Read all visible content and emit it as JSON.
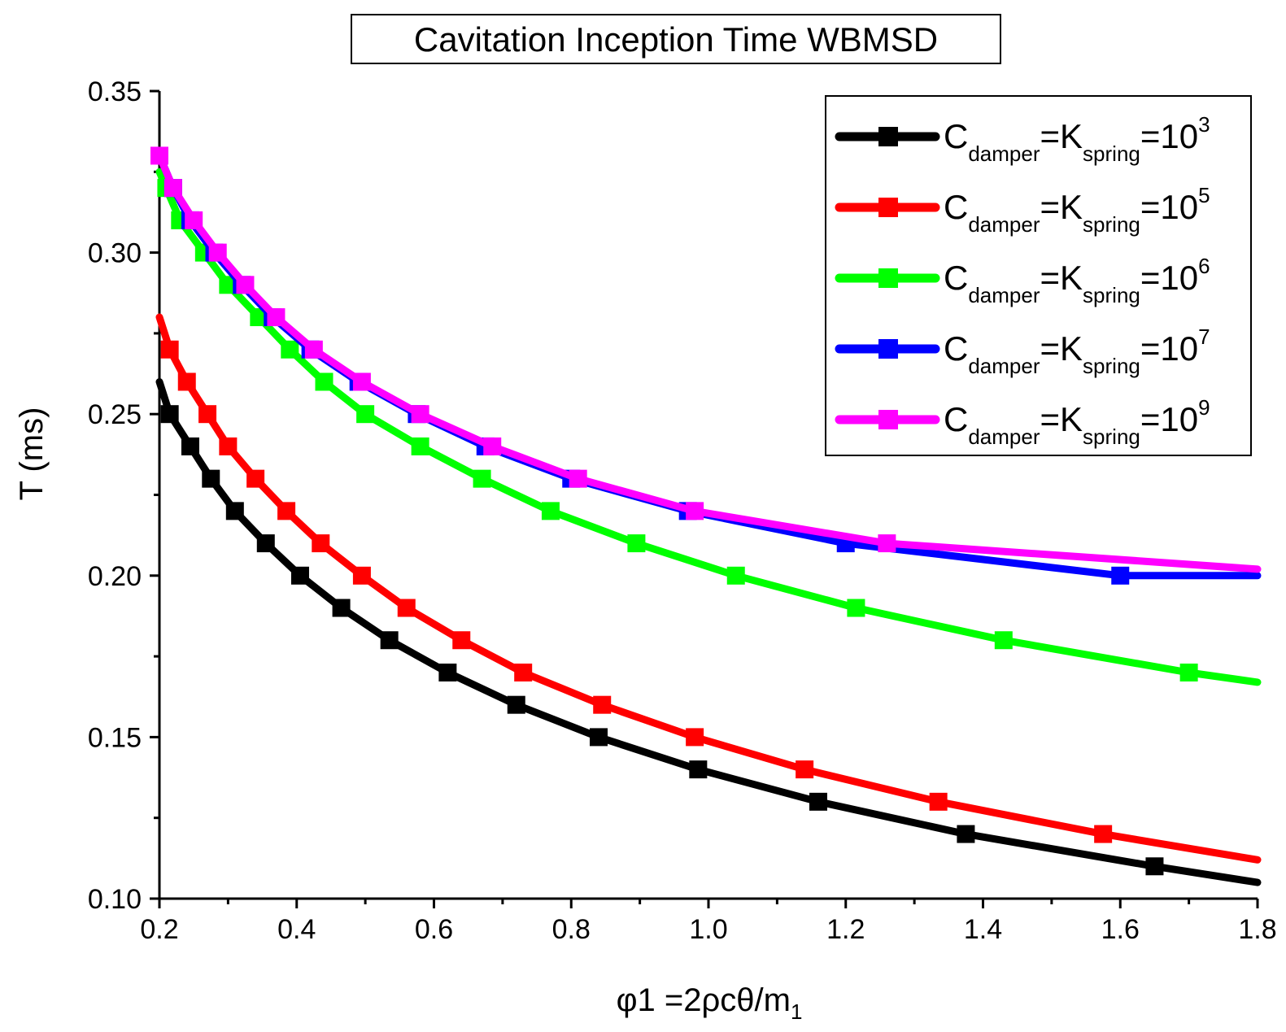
{
  "chart_data": {
    "type": "line",
    "title": "Cavitation Inception Time WBMSD",
    "xlabel": "φ1 =2ρcθ/m",
    "xlabel_sub": "1",
    "ylabel": "T (ms)",
    "xlim": [
      0.2,
      1.8
    ],
    "ylim": [
      0.1,
      0.35
    ],
    "x_ticks": [
      "0.2",
      "0.4",
      "0.6",
      "0.8",
      "1.0",
      "1.2",
      "1.4",
      "1.6",
      "1.8"
    ],
    "y_ticks": [
      "0.10",
      "0.15",
      "0.20",
      "0.25",
      "0.30",
      "0.35"
    ],
    "grid": false,
    "legend_position": "top-right",
    "series": [
      {
        "legend": {
          "base": "C",
          "sub1": "damper",
          "eq1": "=K",
          "sub2": "spring",
          "eq2": "=10",
          "sup": "3"
        },
        "color": "#000000",
        "points": [
          [
            0.2,
            0.26
          ],
          [
            0.215,
            0.25
          ],
          [
            0.245,
            0.24
          ],
          [
            0.275,
            0.23
          ],
          [
            0.31,
            0.22
          ],
          [
            0.355,
            0.21
          ],
          [
            0.405,
            0.2
          ],
          [
            0.465,
            0.19
          ],
          [
            0.535,
            0.18
          ],
          [
            0.62,
            0.17
          ],
          [
            0.72,
            0.16
          ],
          [
            0.84,
            0.15
          ],
          [
            0.985,
            0.14
          ],
          [
            1.16,
            0.13
          ],
          [
            1.375,
            0.12
          ],
          [
            1.65,
            0.11
          ],
          [
            1.8,
            0.105
          ]
        ],
        "markers": [
          [
            0.215,
            0.25
          ],
          [
            0.245,
            0.24
          ],
          [
            0.275,
            0.23
          ],
          [
            0.31,
            0.22
          ],
          [
            0.355,
            0.21
          ],
          [
            0.405,
            0.2
          ],
          [
            0.465,
            0.19
          ],
          [
            0.535,
            0.18
          ],
          [
            0.62,
            0.17
          ],
          [
            0.72,
            0.16
          ],
          [
            0.84,
            0.15
          ],
          [
            0.985,
            0.14
          ],
          [
            1.16,
            0.13
          ],
          [
            1.375,
            0.12
          ],
          [
            1.65,
            0.11
          ]
        ]
      },
      {
        "legend": {
          "base": "C",
          "sub1": "damper",
          "eq1": "=K",
          "sub2": "spring",
          "eq2": "=10",
          "sup": "5"
        },
        "color": "#ff0000",
        "points": [
          [
            0.2,
            0.28
          ],
          [
            0.215,
            0.27
          ],
          [
            0.24,
            0.26
          ],
          [
            0.27,
            0.25
          ],
          [
            0.3,
            0.24
          ],
          [
            0.34,
            0.23
          ],
          [
            0.385,
            0.22
          ],
          [
            0.435,
            0.21
          ],
          [
            0.495,
            0.2
          ],
          [
            0.56,
            0.19
          ],
          [
            0.64,
            0.18
          ],
          [
            0.73,
            0.17
          ],
          [
            0.845,
            0.16
          ],
          [
            0.98,
            0.15
          ],
          [
            1.14,
            0.14
          ],
          [
            1.335,
            0.13
          ],
          [
            1.575,
            0.12
          ],
          [
            1.8,
            0.112
          ]
        ],
        "markers": [
          [
            0.215,
            0.27
          ],
          [
            0.24,
            0.26
          ],
          [
            0.27,
            0.25
          ],
          [
            0.3,
            0.24
          ],
          [
            0.34,
            0.23
          ],
          [
            0.385,
            0.22
          ],
          [
            0.435,
            0.21
          ],
          [
            0.495,
            0.2
          ],
          [
            0.56,
            0.19
          ],
          [
            0.64,
            0.18
          ],
          [
            0.73,
            0.17
          ],
          [
            0.845,
            0.16
          ],
          [
            0.98,
            0.15
          ],
          [
            1.14,
            0.14
          ],
          [
            1.335,
            0.13
          ],
          [
            1.575,
            0.12
          ]
        ]
      },
      {
        "legend": {
          "base": "C",
          "sub1": "damper",
          "eq1": "=K",
          "sub2": "spring",
          "eq2": "=10",
          "sup": "6"
        },
        "color": "#00ff00",
        "points": [
          [
            0.2,
            0.325
          ],
          [
            0.21,
            0.32
          ],
          [
            0.23,
            0.31
          ],
          [
            0.265,
            0.3
          ],
          [
            0.3,
            0.29
          ],
          [
            0.345,
            0.28
          ],
          [
            0.39,
            0.27
          ],
          [
            0.44,
            0.26
          ],
          [
            0.5,
            0.25
          ],
          [
            0.58,
            0.24
          ],
          [
            0.67,
            0.23
          ],
          [
            0.77,
            0.22
          ],
          [
            0.895,
            0.21
          ],
          [
            1.04,
            0.2
          ],
          [
            1.215,
            0.19
          ],
          [
            1.43,
            0.18
          ],
          [
            1.7,
            0.17
          ],
          [
            1.8,
            0.167
          ]
        ],
        "markers": [
          [
            0.21,
            0.32
          ],
          [
            0.23,
            0.31
          ],
          [
            0.265,
            0.3
          ],
          [
            0.3,
            0.29
          ],
          [
            0.345,
            0.28
          ],
          [
            0.39,
            0.27
          ],
          [
            0.44,
            0.26
          ],
          [
            0.5,
            0.25
          ],
          [
            0.58,
            0.24
          ],
          [
            0.67,
            0.23
          ],
          [
            0.77,
            0.22
          ],
          [
            0.895,
            0.21
          ],
          [
            1.04,
            0.2
          ],
          [
            1.215,
            0.19
          ],
          [
            1.43,
            0.18
          ],
          [
            1.7,
            0.17
          ]
        ]
      },
      {
        "legend": {
          "base": "C",
          "sub1": "damper",
          "eq1": "=K",
          "sub2": "spring",
          "eq2": "=10",
          "sup": "7"
        },
        "color": "#0000ff",
        "points": [
          [
            0.2,
            0.33
          ],
          [
            0.22,
            0.32
          ],
          [
            0.245,
            0.31
          ],
          [
            0.28,
            0.3
          ],
          [
            0.32,
            0.29
          ],
          [
            0.365,
            0.28
          ],
          [
            0.42,
            0.27
          ],
          [
            0.49,
            0.26
          ],
          [
            0.575,
            0.25
          ],
          [
            0.675,
            0.24
          ],
          [
            0.8,
            0.23
          ],
          [
            0.97,
            0.22
          ],
          [
            1.2,
            0.21
          ],
          [
            1.6,
            0.2
          ],
          [
            1.8,
            0.2
          ]
        ],
        "markers": [
          [
            0.22,
            0.32
          ],
          [
            0.245,
            0.31
          ],
          [
            0.28,
            0.3
          ],
          [
            0.32,
            0.29
          ],
          [
            0.365,
            0.28
          ],
          [
            0.42,
            0.27
          ],
          [
            0.49,
            0.26
          ],
          [
            0.575,
            0.25
          ],
          [
            0.675,
            0.24
          ],
          [
            0.8,
            0.23
          ],
          [
            0.97,
            0.22
          ],
          [
            1.2,
            0.21
          ],
          [
            1.6,
            0.2
          ]
        ]
      },
      {
        "legend": {
          "base": "C",
          "sub1": "damper",
          "eq1": "=K",
          "sub2": "spring",
          "eq2": "=10",
          "sup": "9"
        },
        "color": "#ff00ff",
        "points": [
          [
            0.2,
            0.33
          ],
          [
            0.22,
            0.32
          ],
          [
            0.25,
            0.31
          ],
          [
            0.285,
            0.3
          ],
          [
            0.325,
            0.29
          ],
          [
            0.37,
            0.28
          ],
          [
            0.425,
            0.27
          ],
          [
            0.495,
            0.26
          ],
          [
            0.58,
            0.25
          ],
          [
            0.685,
            0.24
          ],
          [
            0.81,
            0.23
          ],
          [
            0.98,
            0.22
          ],
          [
            1.26,
            0.21
          ],
          [
            1.8,
            0.202
          ]
        ],
        "markers": [
          [
            0.2,
            0.33
          ],
          [
            0.22,
            0.32
          ],
          [
            0.25,
            0.31
          ],
          [
            0.285,
            0.3
          ],
          [
            0.325,
            0.29
          ],
          [
            0.37,
            0.28
          ],
          [
            0.425,
            0.27
          ],
          [
            0.495,
            0.26
          ],
          [
            0.58,
            0.25
          ],
          [
            0.685,
            0.24
          ],
          [
            0.81,
            0.23
          ],
          [
            0.98,
            0.22
          ],
          [
            1.26,
            0.21
          ]
        ]
      }
    ]
  }
}
